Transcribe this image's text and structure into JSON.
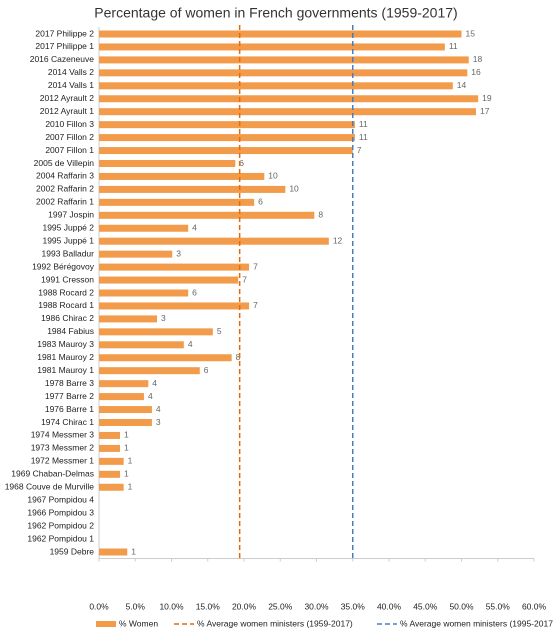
{
  "chart_data": {
    "type": "hbar",
    "title": "Percentage of women in French governments (1959-2017)",
    "categories": [
      "2017 Philippe 2",
      "2017 Philippe 1",
      "2016 Cazeneuve",
      "2014 Valls 2",
      "2014 Valls 1",
      "2012 Ayrault 2",
      "2012 Ayrault 1",
      "2010 Fillon 3",
      "2007 Fillon 2",
      "2007 Fillon 1",
      "2005 de Villepin",
      "2004 Raffarin 3",
      "2002 Raffarin 2",
      "2002 Raffarin 1",
      "1997 Jospin",
      "1995 Juppé 2",
      "1995 Juppé 1",
      "1993 Balladur",
      "1992 Bérégovoy",
      "1991 Cresson",
      "1988 Rocard 2",
      "1988 Rocard 1",
      "1986 Chirac 2",
      "1984 Fabius",
      "1983 Mauroy 3",
      "1981 Mauroy 2",
      "1981 Mauroy 1",
      "1978 Barre 3",
      "1977 Barre 2",
      "1976 Barre 1",
      "1974 Chirac 1",
      "1974 Messmer 3",
      "1973 Messmer 2",
      "1972 Messmer 1",
      "1969 Chaban-Delmas",
      "1968 Couve de Murville",
      "1967 Pompidou 4",
      "1966 Pompidou 3",
      "1962 Pompidou 2",
      "1962 Pompidou 1",
      "1959 Debre"
    ],
    "series": [
      {
        "name": "% Women",
        "color": "#f29b4b",
        "values": [
          50.0,
          47.7,
          51.0,
          50.8,
          48.8,
          52.3,
          52.0,
          35.3,
          35.3,
          35.0,
          18.8,
          22.8,
          25.7,
          21.4,
          29.7,
          12.3,
          31.7,
          10.1,
          20.7,
          19.2,
          12.3,
          20.7,
          8.0,
          15.7,
          11.7,
          18.3,
          13.9,
          6.8,
          6.2,
          7.3,
          7.3,
          2.9,
          2.9,
          3.4,
          2.9,
          3.4,
          null,
          null,
          null,
          null,
          3.9
        ],
        "labels": [
          15,
          11,
          18,
          16,
          14,
          19,
          17,
          11,
          11,
          7,
          6,
          10,
          10,
          6,
          8,
          4,
          12,
          3,
          7,
          7,
          6,
          7,
          3,
          5,
          4,
          8,
          6,
          4,
          4,
          4,
          3,
          1,
          1,
          1,
          1,
          1,
          null,
          null,
          null,
          null,
          1
        ]
      }
    ],
    "reference_lines": [
      {
        "name": "% Average women ministers (1959-2017)",
        "value": 19.4,
        "color": "#e46c0a"
      },
      {
        "name": "% Average women ministers (1995-2017)",
        "value": 35.0,
        "color": "#4a7ebb"
      }
    ],
    "xlim": [
      0,
      60
    ],
    "xticks": [
      {
        "value": 0,
        "label": "0.0%"
      },
      {
        "value": 5,
        "label": "5.0%"
      },
      {
        "value": 10,
        "label": "10.0%"
      },
      {
        "value": 15,
        "label": "15.0%"
      },
      {
        "value": 20,
        "label": "20.0%"
      },
      {
        "value": 25,
        "label": "25.0%"
      },
      {
        "value": 30,
        "label": "30.0%"
      },
      {
        "value": 35,
        "label": "35.0%"
      },
      {
        "value": 40,
        "label": "40.0%"
      },
      {
        "value": 45,
        "label": "45.0%"
      },
      {
        "value": 50,
        "label": "50.0%"
      },
      {
        "value": 55,
        "label": "55.0%"
      },
      {
        "value": 60,
        "label": "60.0%"
      }
    ],
    "grid": false
  }
}
